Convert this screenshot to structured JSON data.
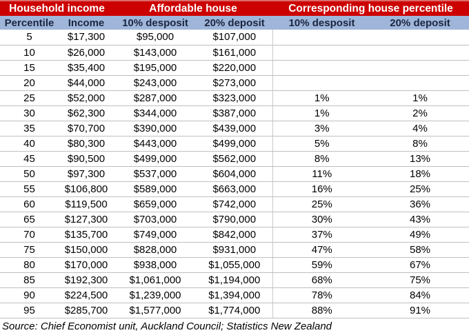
{
  "chart_data": {
    "type": "table",
    "group_headers": [
      "Household income",
      "Affordable house",
      "Corresponding house percentile"
    ],
    "columns": [
      "Percentile",
      "Income",
      "10% desposit",
      "20% deposit",
      "10% desposit",
      "20% deposit"
    ],
    "rows": [
      [
        "5",
        "$17,300",
        "$95,000",
        "$107,000",
        "",
        ""
      ],
      [
        "10",
        "$26,000",
        "$143,000",
        "$161,000",
        "",
        ""
      ],
      [
        "15",
        "$35,400",
        "$195,000",
        "$220,000",
        "",
        ""
      ],
      [
        "20",
        "$44,000",
        "$243,000",
        "$273,000",
        "",
        ""
      ],
      [
        "25",
        "$52,000",
        "$287,000",
        "$323,000",
        "1%",
        "1%"
      ],
      [
        "30",
        "$62,300",
        "$344,000",
        "$387,000",
        "1%",
        "2%"
      ],
      [
        "35",
        "$70,700",
        "$390,000",
        "$439,000",
        "3%",
        "4%"
      ],
      [
        "40",
        "$80,300",
        "$443,000",
        "$499,000",
        "5%",
        "8%"
      ],
      [
        "45",
        "$90,500",
        "$499,000",
        "$562,000",
        "8%",
        "13%"
      ],
      [
        "50",
        "$97,300",
        "$537,000",
        "$604,000",
        "11%",
        "18%"
      ],
      [
        "55",
        "$106,800",
        "$589,000",
        "$663,000",
        "16%",
        "25%"
      ],
      [
        "60",
        "$119,500",
        "$659,000",
        "$742,000",
        "25%",
        "36%"
      ],
      [
        "65",
        "$127,300",
        "$703,000",
        "$790,000",
        "30%",
        "43%"
      ],
      [
        "70",
        "$135,700",
        "$749,000",
        "$842,000",
        "37%",
        "49%"
      ],
      [
        "75",
        "$150,000",
        "$828,000",
        "$931,000",
        "47%",
        "58%"
      ],
      [
        "80",
        "$170,000",
        "$938,000",
        "$1,055,000",
        "59%",
        "67%"
      ],
      [
        "85",
        "$192,300",
        "$1,061,000",
        "$1,194,000",
        "68%",
        "75%"
      ],
      [
        "90",
        "$224,500",
        "$1,239,000",
        "$1,394,000",
        "78%",
        "84%"
      ],
      [
        "95",
        "$285,700",
        "$1,577,000",
        "$1,774,000",
        "88%",
        "91%"
      ]
    ],
    "source": "Source: Chief Economist unit, Auckland Council; Statistics New Zealand"
  },
  "colors": {
    "header_red": "#cc0000",
    "header_red_top_edge": "#dd6a6a",
    "header_blue": "#9fb6da",
    "header_blue_text": "#1b2540",
    "gridline": "#bfbfbf",
    "bottom_border": "#7f7f7f"
  }
}
